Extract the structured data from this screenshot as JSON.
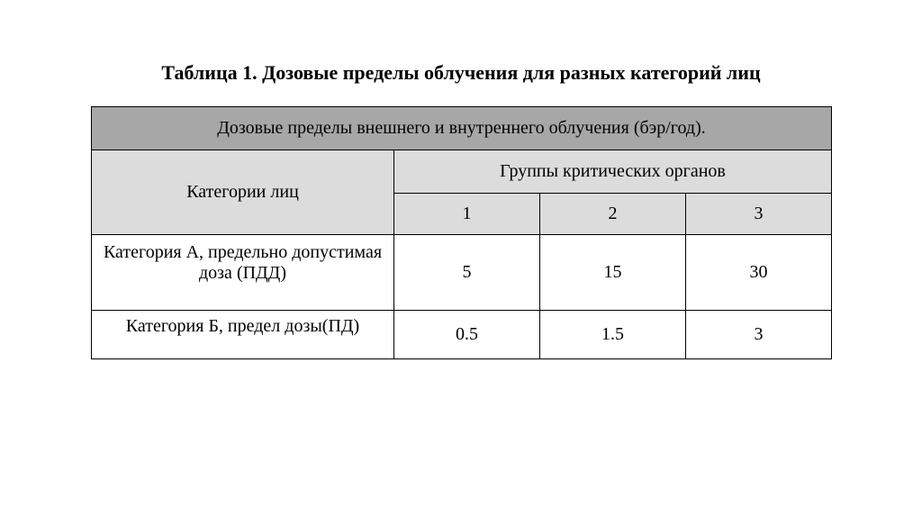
{
  "title": "Таблица 1. Дозовые пределы облучения для разных категорий лиц",
  "table": {
    "background_color": "#ffffff",
    "border_color": "#000000",
    "header_bg": "#a7a7a7",
    "subheader_bg": "#dcdcdc",
    "font_family": "Times New Roman",
    "title_fontsize": 22,
    "cell_fontsize": 20,
    "main_header": "Дозовые пределы внешнего и внутреннего облучения (бэр/год).",
    "category_header": "Категории лиц",
    "groups_header": "Группы критических органов",
    "group_numbers": [
      "1",
      "2",
      "3"
    ],
    "rows": [
      {
        "category": "Категория А, предельно допустимая доза (ПДД)",
        "values": [
          "5",
          "15",
          "30"
        ]
      },
      {
        "category": "Категория Б, предел дозы(ПД)",
        "values": [
          "0.5",
          "1.5",
          "3"
        ]
      }
    ],
    "column_widths": {
      "category": 336,
      "group": 162
    }
  }
}
